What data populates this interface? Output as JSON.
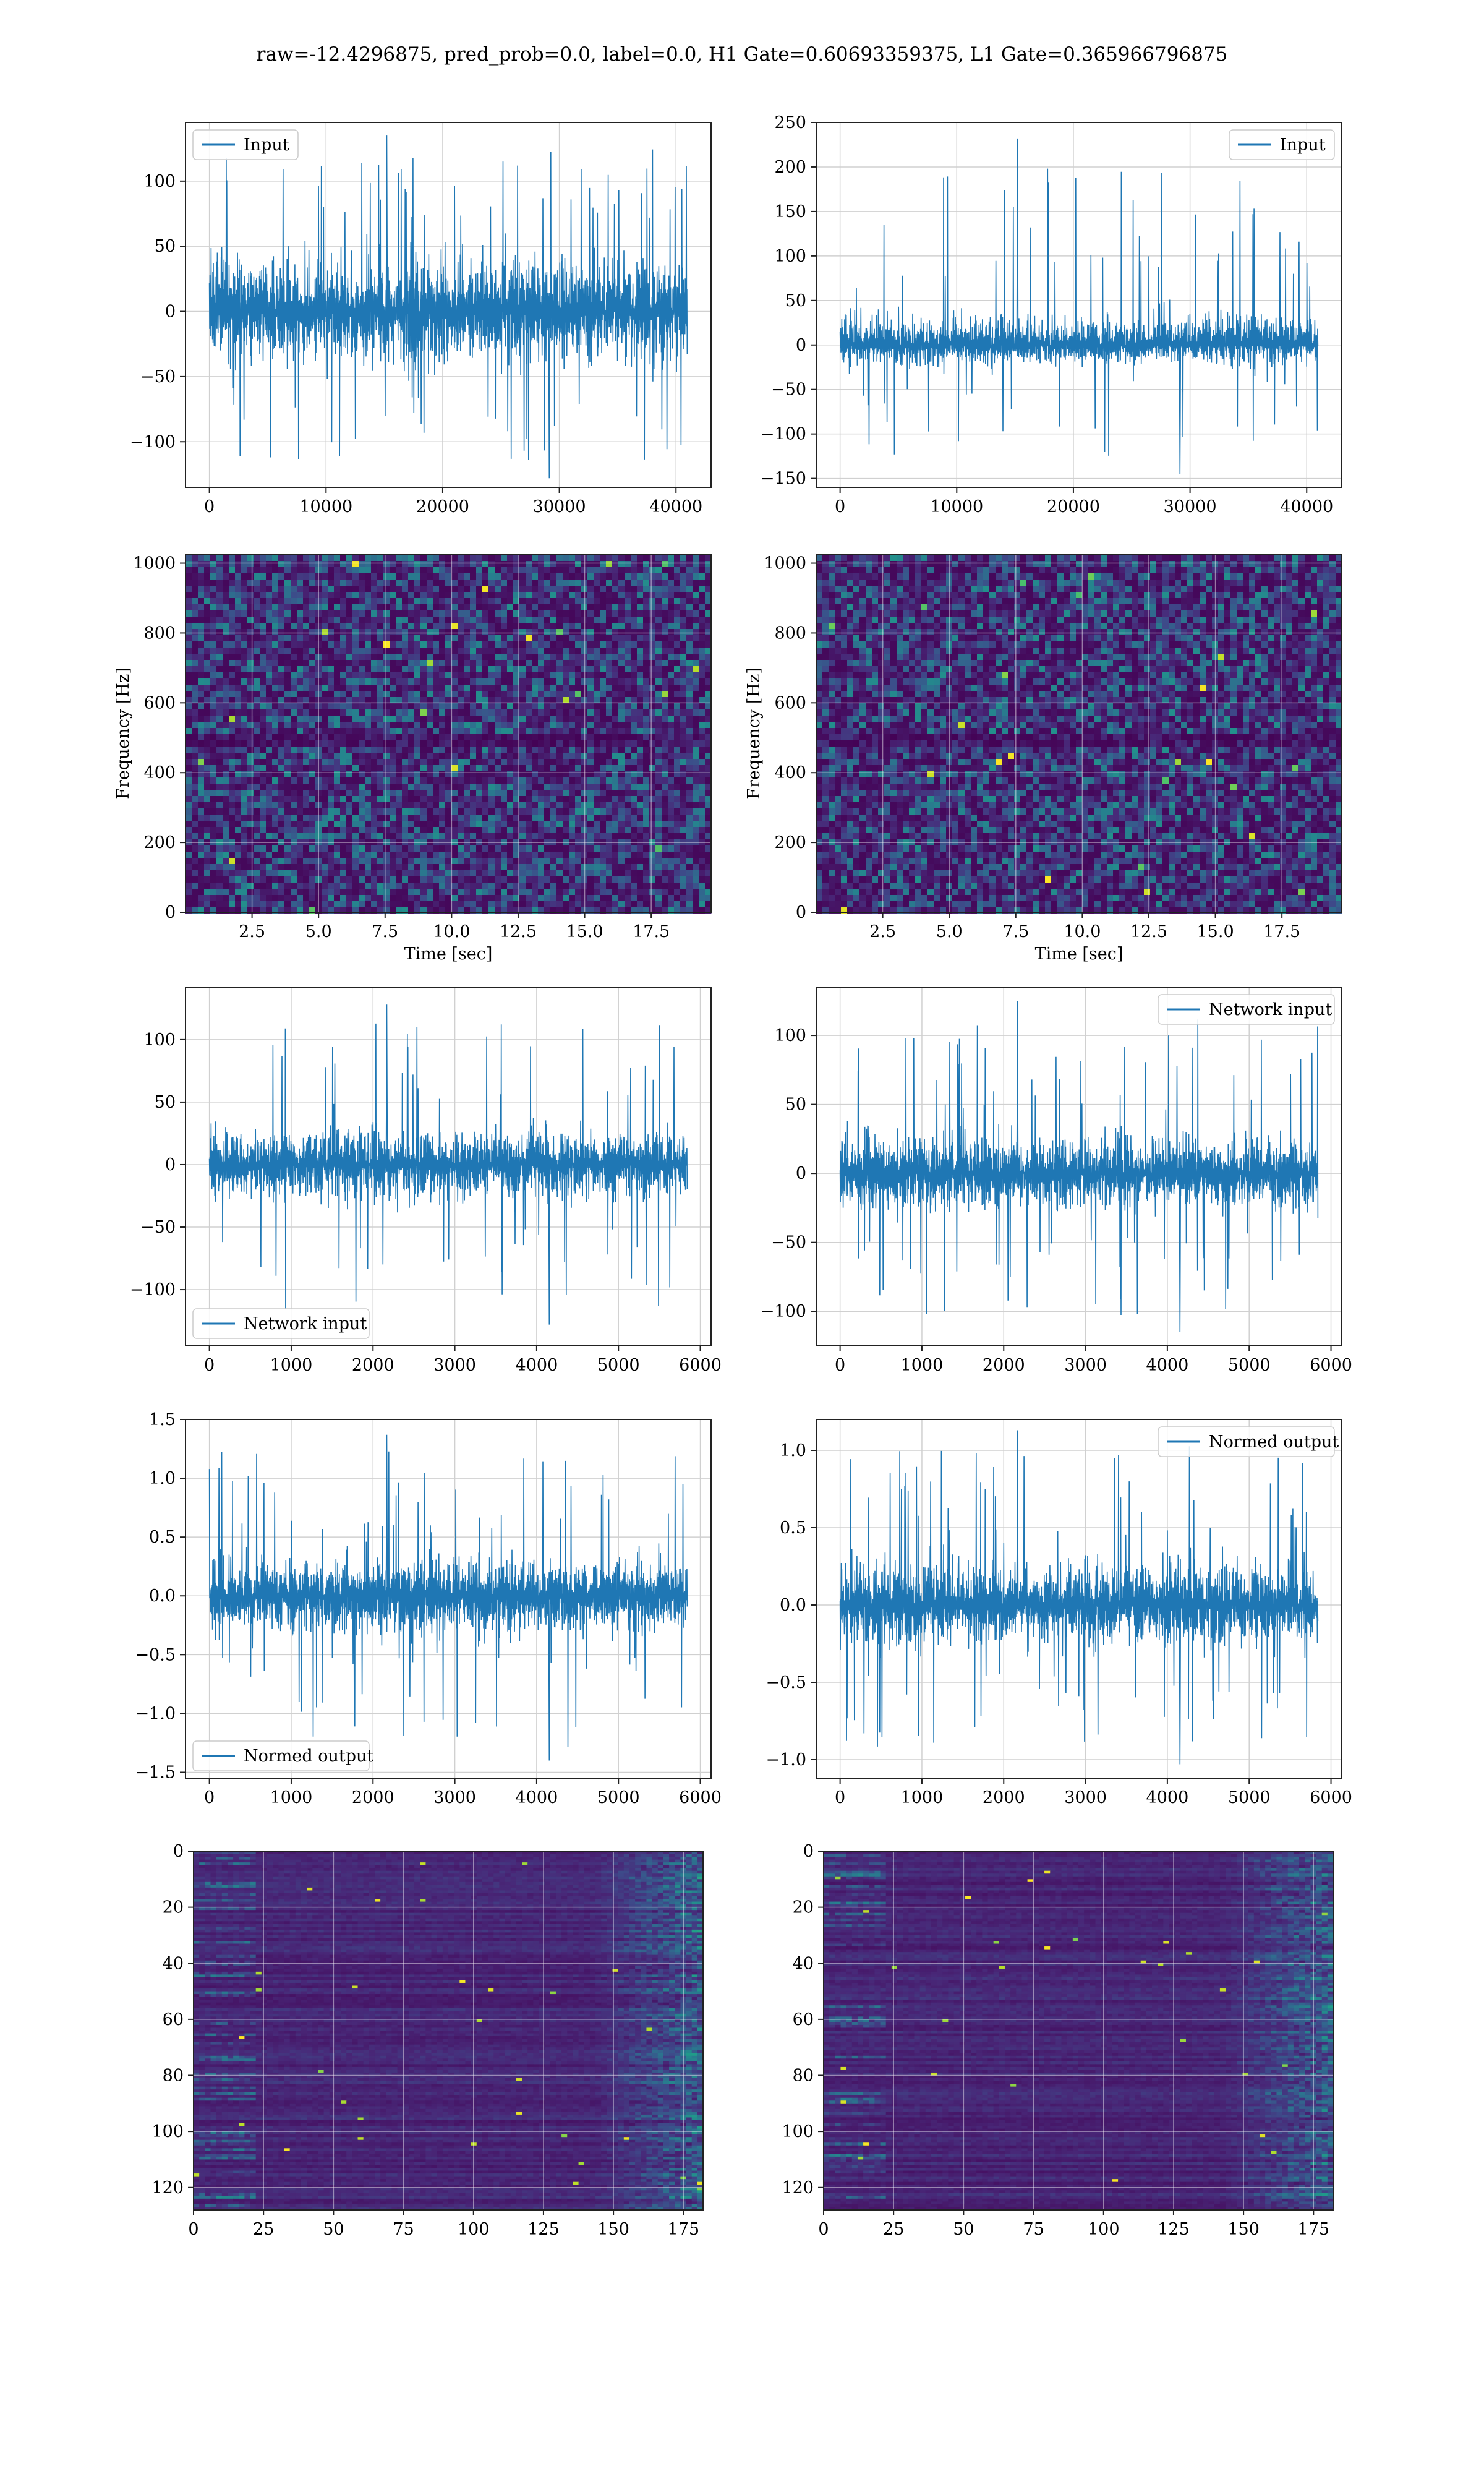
{
  "title": "raw=-12.4296875, pred_prob=0.0, label=0.0, H1 Gate=0.60693359375, L1 Gate=0.365966796875",
  "colors": {
    "line": "#1f77b4",
    "grid": "#d0d0d0",
    "viridis": [
      "#440154",
      "#482878",
      "#3e4989",
      "#31688e",
      "#26828e",
      "#1f9e89",
      "#35b779",
      "#6ece58",
      "#b5de2b",
      "#fde725"
    ]
  },
  "chart_data": [
    {
      "id": "input-h1",
      "type": "line",
      "legend_label": "Input",
      "legend_loc": "upper left",
      "x": [
        0,
        40960
      ],
      "xlim": [
        -2048,
        43008
      ],
      "ylim": [
        -135,
        145
      ],
      "xticks": [
        0,
        10000,
        20000,
        30000,
        40000
      ],
      "yticks": [
        -100,
        -50,
        0,
        50,
        100
      ],
      "xlabel": "",
      "ylabel": "",
      "series": [
        {
          "name": "Input",
          "stats": {
            "core": 68,
            "max": 135,
            "min": -128
          }
        }
      ]
    },
    {
      "id": "input-l1",
      "type": "line",
      "legend_label": "Input",
      "legend_loc": "upper right",
      "x": [
        0,
        40960
      ],
      "xlim": [
        -2048,
        43008
      ],
      "ylim": [
        -160,
        250
      ],
      "xticks": [
        0,
        10000,
        20000,
        30000,
        40000
      ],
      "yticks": [
        -150,
        -100,
        -50,
        0,
        50,
        100,
        150,
        200,
        250
      ],
      "xlabel": "",
      "ylabel": "",
      "series": [
        {
          "name": "Input",
          "stats": {
            "core": 55,
            "max": 232,
            "min": -145
          }
        }
      ]
    },
    {
      "id": "spectrogram-h1",
      "type": "heatmap",
      "xlim": [
        0,
        19.75
      ],
      "ylim": [
        0,
        1024
      ],
      "xticks": [
        2.5,
        5.0,
        7.5,
        10.0,
        12.5,
        15.0,
        17.5
      ],
      "yticks": [
        0,
        200,
        400,
        600,
        800,
        1000
      ],
      "xlabel": "Time [sec]",
      "ylabel": "Frequency [Hz]"
    },
    {
      "id": "spectrogram-l1",
      "type": "heatmap",
      "xlim": [
        0,
        19.75
      ],
      "ylim": [
        0,
        1024
      ],
      "xticks": [
        2.5,
        5.0,
        7.5,
        10.0,
        12.5,
        15.0,
        17.5
      ],
      "yticks": [
        0,
        200,
        400,
        600,
        800,
        1000
      ],
      "xlabel": "Time [sec]",
      "ylabel": "Frequency [Hz]"
    },
    {
      "id": "network-input-h1",
      "type": "line",
      "legend_label": "Network input",
      "legend_loc": "lower left",
      "x": [
        0,
        5840
      ],
      "xlim": [
        -292,
        6132
      ],
      "ylim": [
        -145,
        142
      ],
      "xticks": [
        0,
        1000,
        2000,
        3000,
        4000,
        5000,
        6000
      ],
      "yticks": [
        -100,
        -50,
        0,
        50,
        100
      ],
      "xlabel": "",
      "ylabel": "",
      "series": [
        {
          "name": "Network input",
          "stats": {
            "core": 45,
            "max": 128,
            "min": -128
          }
        }
      ]
    },
    {
      "id": "network-input-l1",
      "type": "line",
      "legend_label": "Network input",
      "legend_loc": "upper right",
      "x": [
        0,
        5840
      ],
      "xlim": [
        -292,
        6132
      ],
      "ylim": [
        -125,
        135
      ],
      "xticks": [
        0,
        1000,
        2000,
        3000,
        4000,
        5000,
        6000
      ],
      "yticks": [
        -100,
        -50,
        0,
        50,
        100
      ],
      "xlabel": "",
      "ylabel": "",
      "series": [
        {
          "name": "Network input",
          "stats": {
            "core": 45,
            "max": 125,
            "min": -115
          }
        }
      ]
    },
    {
      "id": "normed-output-h1",
      "type": "line",
      "legend_label": "Normed output",
      "legend_loc": "lower left",
      "x": [
        0,
        5840
      ],
      "xlim": [
        -292,
        6132
      ],
      "ylim": [
        -1.55,
        1.5
      ],
      "xticks": [
        0,
        1000,
        2000,
        3000,
        4000,
        5000,
        6000
      ],
      "yticks": [
        -1.5,
        -1.0,
        -0.5,
        0.0,
        0.5,
        1.0,
        1.5
      ],
      "xlabel": "",
      "ylabel": "",
      "series": [
        {
          "name": "Normed output",
          "stats": {
            "core": 0.5,
            "max": 1.37,
            "min": -1.4
          }
        }
      ]
    },
    {
      "id": "normed-output-l1",
      "type": "line",
      "legend_label": "Normed output",
      "legend_loc": "upper right",
      "x": [
        0,
        5840
      ],
      "xlim": [
        -292,
        6132
      ],
      "ylim": [
        -1.12,
        1.2
      ],
      "xticks": [
        0,
        1000,
        2000,
        3000,
        4000,
        5000,
        6000
      ],
      "yticks": [
        -1.0,
        -0.5,
        0.0,
        0.5,
        1.0
      ],
      "xlabel": "",
      "ylabel": "",
      "series": [
        {
          "name": "Normed output",
          "stats": {
            "core": 0.45,
            "max": 1.13,
            "min": -1.03
          }
        }
      ]
    },
    {
      "id": "feature-map-h1",
      "type": "heatmap",
      "xlim": [
        0,
        182
      ],
      "ylim": [
        0,
        128
      ],
      "y_inverted": true,
      "xticks": [
        0,
        25,
        50,
        75,
        100,
        125,
        150,
        175
      ],
      "yticks": [
        0,
        20,
        40,
        60,
        80,
        100,
        120
      ],
      "xlabel": "",
      "ylabel": ""
    },
    {
      "id": "feature-map-l1",
      "type": "heatmap",
      "xlim": [
        0,
        182
      ],
      "ylim": [
        0,
        128
      ],
      "y_inverted": true,
      "xticks": [
        0,
        25,
        50,
        75,
        100,
        125,
        150,
        175
      ],
      "yticks": [
        0,
        20,
        40,
        60,
        80,
        100,
        120
      ],
      "xlabel": "",
      "ylabel": ""
    }
  ]
}
